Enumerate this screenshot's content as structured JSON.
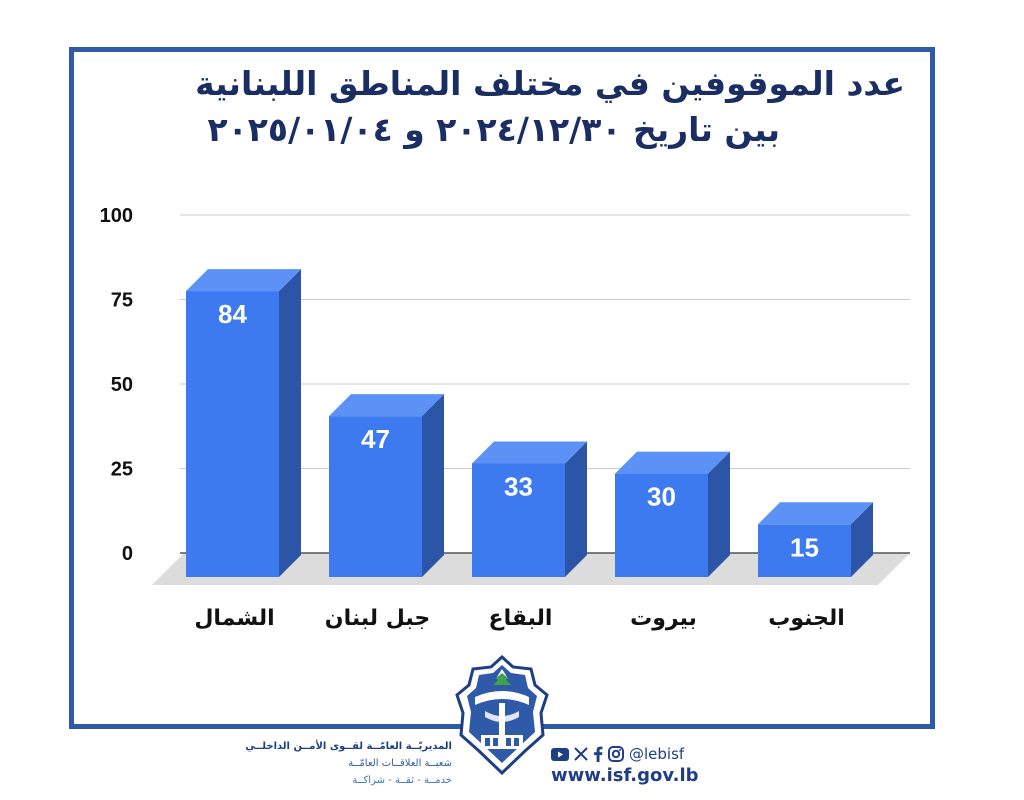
{
  "title": {
    "line1": "عدد الموقوفين في مختلف المناطق اللبنانية",
    "line2": "بين تاريخ ٢٠٢٤/١٢/٣٠ و ٢٠٢٥/٠١/٠٤"
  },
  "chart_data": {
    "type": "bar",
    "title": "عدد الموقوفين في مختلف المناطق اللبنانية بين تاريخ ٢٠٢٤/١٢/٣٠ و ٢٠٢٥/٠١/٠٤",
    "categories": [
      "الشمال",
      "جبل لبنان",
      "البقاع",
      "بيروت",
      "الجنوب"
    ],
    "values": [
      84,
      47,
      33,
      30,
      15
    ],
    "yticks": [
      0,
      25,
      50,
      75,
      100
    ],
    "ylim": [
      0,
      100
    ],
    "xlabel": "",
    "ylabel": "",
    "grid": true,
    "style": "3d",
    "colors": {
      "front": "#3d7af0",
      "side": "#2c55a8",
      "top": "#5c92f5",
      "label": "#ffffff",
      "category": "#111111"
    }
  },
  "footer": {
    "org_line1": "المديريّــة العامّــة لقــوى الأمــن الداخلــي",
    "org_line2": "شعبــة العلاقــات العامّــة",
    "org_line3": "خدمــة - ثقــة - شراكــة",
    "social_handle": "@lebisf",
    "website": "www.isf.gov.lb",
    "social_icons": [
      "youtube-icon",
      "x-icon",
      "facebook-icon",
      "instagram-icon"
    ],
    "logo": "isf-emblem"
  }
}
